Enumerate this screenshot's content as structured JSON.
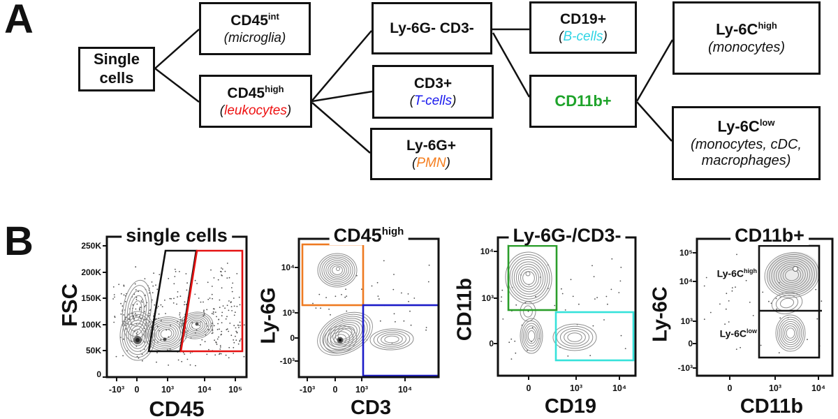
{
  "panels": {
    "a_label": "A",
    "b_label": "B"
  },
  "colors": {
    "red_leukocytes": "#ee1111",
    "blue_tcells": "#1b1bee",
    "orange_pmn": "#f57e1e",
    "cyan_bcells": "#2fd4e4",
    "green_cd11b": "#1ea32a",
    "gate_black": "#111111",
    "gate_red": "#e51212",
    "gate_orange": "#ee7a21",
    "gate_blue": "#1c1cc9",
    "gate_green": "#2b9e2b",
    "gate_cyan": "#36e2da"
  },
  "tree": {
    "boxes": [
      {
        "id": "single-cells",
        "title": "Single\ncells",
        "title_sup": "",
        "sub_pre": "",
        "sub_core": "",
        "sub_post": ""
      },
      {
        "id": "cd45int",
        "title": "CD45",
        "title_sup": "int",
        "sub_pre": "(",
        "sub_core": "microglia",
        "sub_post": ")"
      },
      {
        "id": "cd45high",
        "title": "CD45",
        "title_sup": "high",
        "sub_pre": "(",
        "sub_core": "leukocytes",
        "sub_post": ")"
      },
      {
        "id": "ly6g-cd3-",
        "title": "Ly-6G- CD3-",
        "title_sup": "",
        "sub_pre": "",
        "sub_core": "",
        "sub_post": ""
      },
      {
        "id": "cd3pos",
        "title": "CD3+",
        "title_sup": "",
        "sub_pre": "(",
        "sub_core": "T-cells",
        "sub_post": ")"
      },
      {
        "id": "ly6gpos",
        "title": "Ly-6G+",
        "title_sup": "",
        "sub_pre": "(",
        "sub_core": "PMN",
        "sub_post": ")"
      },
      {
        "id": "cd19pos",
        "title": "CD19+",
        "title_sup": "",
        "sub_pre": "(",
        "sub_core": "B-cells",
        "sub_post": ")"
      },
      {
        "id": "cd11bpos",
        "title": "CD11b+",
        "title_sup": "",
        "sub_pre": "",
        "sub_core": "",
        "sub_post": ""
      },
      {
        "id": "ly6chigh",
        "title": "Ly-6C",
        "title_sup": "high",
        "sub_pre": "(",
        "sub_core": "monocytes",
        "sub_post": ")"
      },
      {
        "id": "ly6clow",
        "title": "Ly-6C",
        "title_sup": "low",
        "sub_pre": "(",
        "sub_core": "monocytes, cDC,\nmacrophages",
        "sub_post": ")"
      }
    ]
  },
  "plots": [
    {
      "id": "plot-single-cells",
      "title": "single cells",
      "title_sup": "",
      "xlabel": "CD45",
      "ylabel": "FSC",
      "xticks": [
        "-10³",
        "0",
        "10³",
        "10⁴",
        "10⁵"
      ],
      "yticks": [
        "250K",
        "200K",
        "150K",
        "100K",
        "50K",
        "0"
      ],
      "gates": [
        {
          "label": "CD45int gate (microglia)",
          "color": "#111111",
          "shape": "trapezoid"
        },
        {
          "label": "CD45high gate (leukocytes)",
          "color": "#e51212",
          "shape": "trapezoid"
        }
      ],
      "clusters": [
        {
          "population": "CD45- cells / debris",
          "location": "CD45 ~0, FSC 50K-150K"
        },
        {
          "population": "CD45 intermediate (microglia)",
          "location": "CD45 ~10³, FSC ~90K"
        },
        {
          "population": "CD45 high (leukocytes)",
          "location": "CD45 ~10⁴, FSC ~100K"
        }
      ]
    },
    {
      "id": "plot-cd45high",
      "title": "CD45",
      "title_sup": "high",
      "xlabel": "CD3",
      "ylabel": "Ly-6G",
      "xticks": [
        "-10³",
        "0",
        "10³",
        "10⁴"
      ],
      "yticks": [
        "10⁴",
        "10³",
        "0",
        "-10³"
      ],
      "gates": [
        {
          "label": "Ly-6G+ gate (PMN)",
          "color": "#ee7a21",
          "shape": "rect"
        },
        {
          "label": "CD3+ gate (T-cells)",
          "color": "#1c1cc9",
          "shape": "rect"
        }
      ],
      "clusters": [
        {
          "population": "Ly-6G+ (PMN)",
          "location": "Ly-6G ~10⁴, CD3 ~0"
        },
        {
          "population": "Ly-6G- CD3-",
          "location": "Ly-6G ~0, CD3 ~0"
        },
        {
          "population": "CD3+ (T-cells)",
          "location": "Ly-6G ~0, CD3 ~10³-10⁴"
        }
      ]
    },
    {
      "id": "plot-ly6g-cd3-",
      "title": "Ly-6G-/CD3-",
      "title_sup": "",
      "xlabel": "CD19",
      "ylabel": "CD11b",
      "xticks": [
        "0",
        "10³",
        "10⁴"
      ],
      "yticks": [
        "10⁴",
        "10³",
        "0"
      ],
      "gates": [
        {
          "label": "CD11b+ gate",
          "color": "#2b9e2b",
          "shape": "rect"
        },
        {
          "label": "CD19+ gate (B-cells)",
          "color": "#36e2da",
          "shape": "rect"
        }
      ],
      "clusters": [
        {
          "population": "CD11b+",
          "location": "CD11b 10³-10⁴, CD19 ~0"
        },
        {
          "population": "CD11b- CD19-",
          "location": "CD11b ~0, CD19 ~0"
        },
        {
          "population": "CD19+ (B-cells)",
          "location": "CD19 ~10³, CD11b ~0"
        }
      ]
    },
    {
      "id": "plot-cd11bpos",
      "title": "CD11b+",
      "title_sup": "",
      "xlabel": "CD11b",
      "ylabel": "Ly-6C",
      "xticks": [
        "0",
        "10³",
        "10⁴"
      ],
      "yticks": [
        "10⁵",
        "10⁴",
        "10³",
        "0",
        "-10³"
      ],
      "inner_labels": [
        {
          "base": "Ly-6C",
          "sup": "high"
        },
        {
          "base": "Ly-6C",
          "sup": "low"
        }
      ],
      "gates": [
        {
          "label": "Ly-6C high gate",
          "color": "#111111",
          "shape": "rect"
        },
        {
          "label": "Ly-6C low gate",
          "color": "#111111",
          "shape": "rect"
        }
      ],
      "clusters": [
        {
          "population": "Ly-6C high (monocytes)",
          "location": "Ly-6C ~10⁴-10⁵, CD11b ~10³"
        },
        {
          "population": "Ly-6C low (monocytes, cDC, macrophages)",
          "location": "Ly-6C ~0-10³, CD11b ~10³"
        }
      ]
    }
  ]
}
